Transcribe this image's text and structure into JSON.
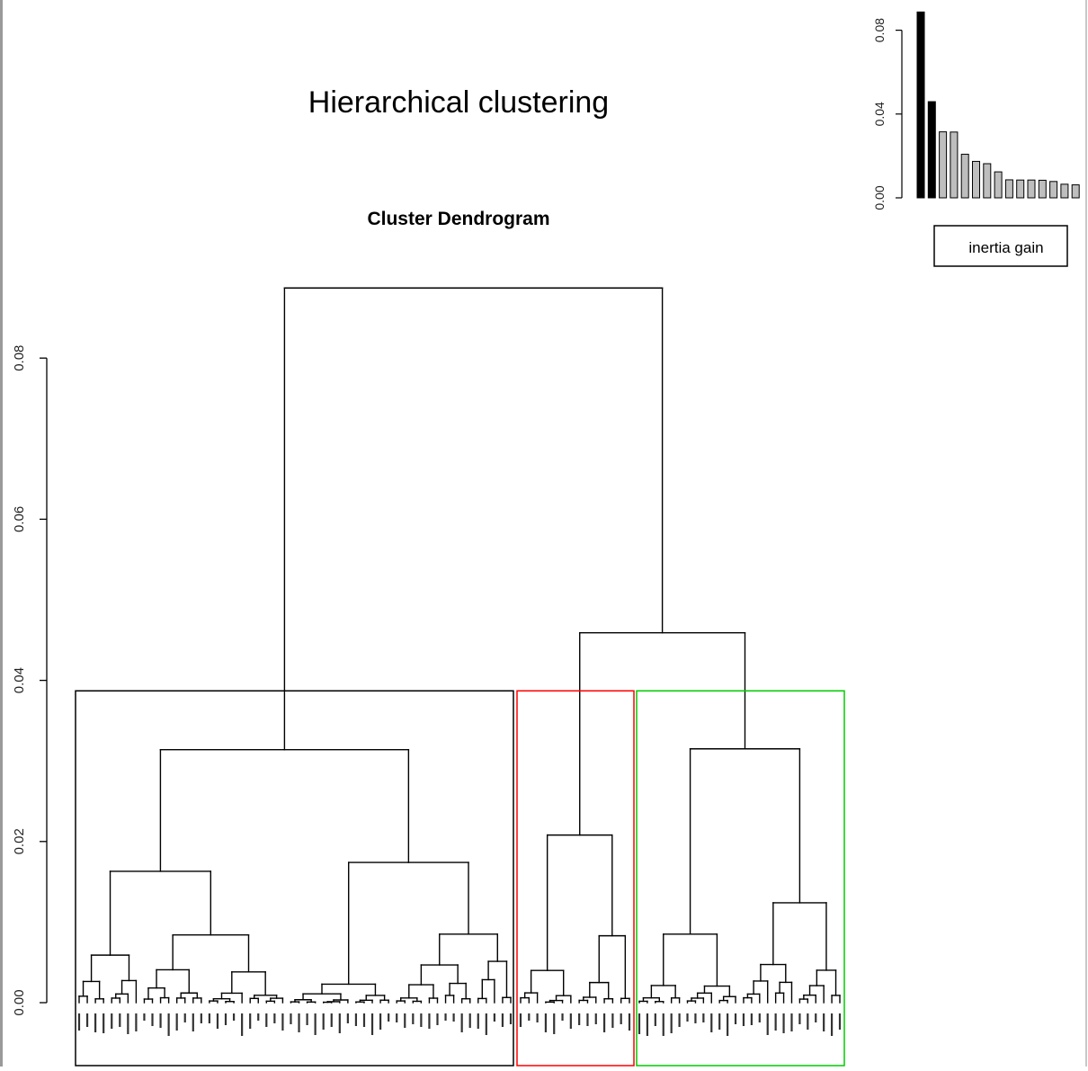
{
  "chart_data": [
    {
      "type": "dendrogram",
      "title": "Hierarchical clustering",
      "subtitle": "Cluster Dendrogram",
      "y_ticks": [
        "0.00",
        "0.02",
        "0.04",
        "0.06",
        "0.08"
      ],
      "ylim": [
        0,
        0.09
      ],
      "grid": false,
      "merge_heights_top": [
        0.0887,
        0.0459,
        0.0315,
        0.0314,
        0.0208,
        0.0174,
        0.0163,
        0.0124
      ],
      "cut_height": 0.0387,
      "n_clusters": 3,
      "clusters": [
        {
          "color": "#000000",
          "leaf_count": 54
        },
        {
          "color": "#ff0000",
          "leaf_count": 14
        },
        {
          "color": "#00cc00",
          "leaf_count": 26
        }
      ]
    },
    {
      "type": "bar",
      "legend": [
        "inertia gain"
      ],
      "legend_placement": "below",
      "y_ticks": [
        "0.00",
        "0.04",
        "0.08"
      ],
      "ylim": [
        0,
        0.09
      ],
      "values": [
        0.0887,
        0.0459,
        0.0315,
        0.0314,
        0.0208,
        0.0174,
        0.0163,
        0.0124,
        0.0086,
        0.0085,
        0.0085,
        0.0084,
        0.0078,
        0.0065,
        0.0062
      ],
      "highlighted_count": 2,
      "colors": {
        "highlight": "#000000",
        "rest": "#bebebe"
      }
    }
  ]
}
